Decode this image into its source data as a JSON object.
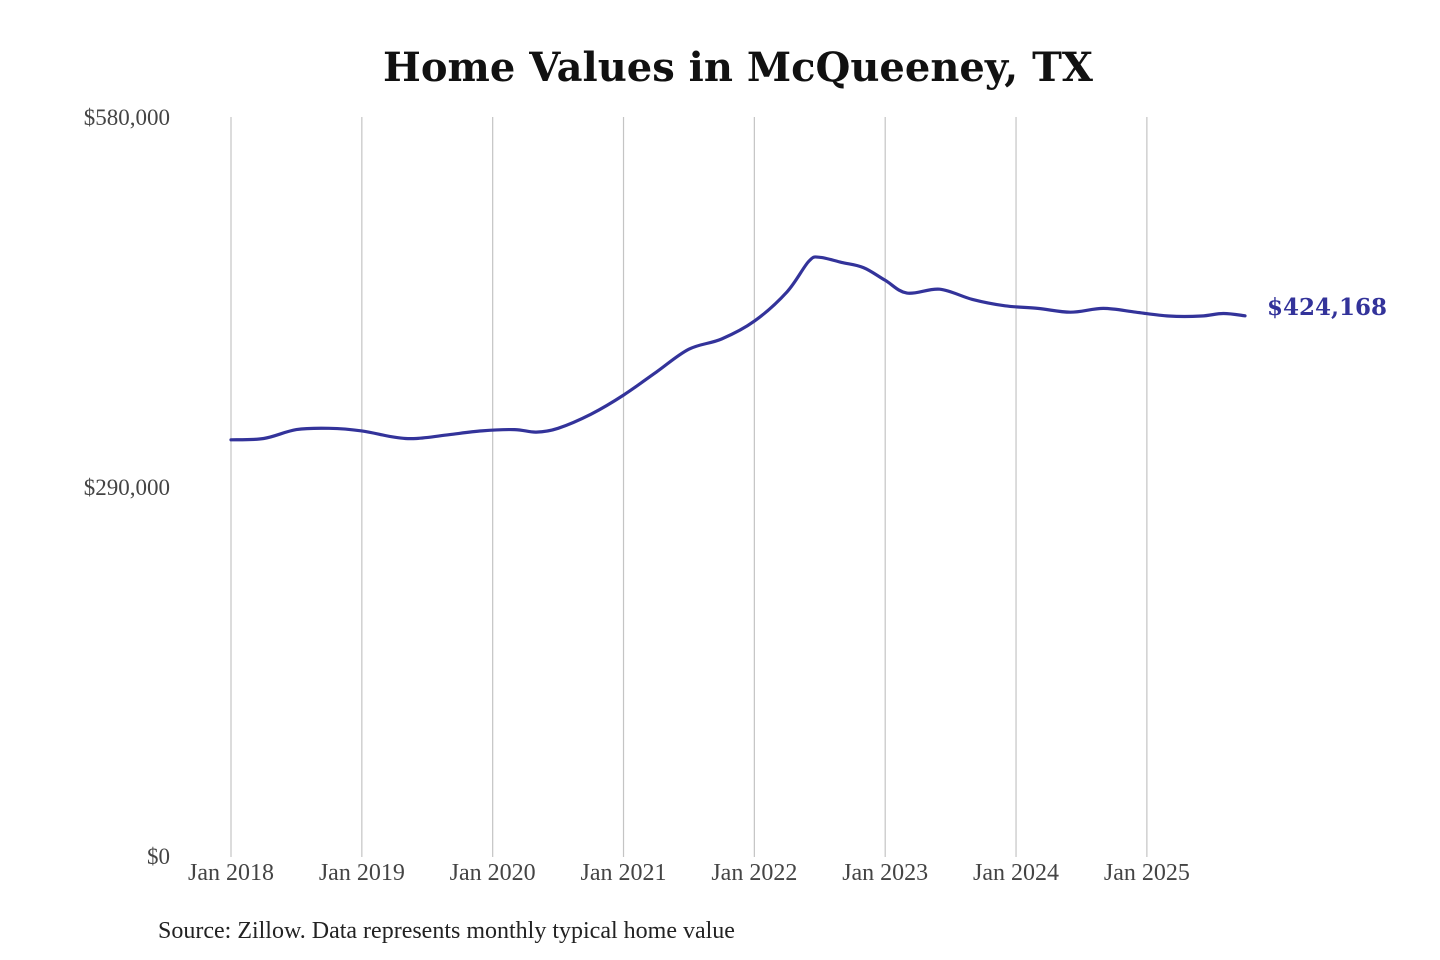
{
  "chart_data": {
    "type": "line",
    "title": "Home Values in McQueeney, TX",
    "xlabel": "",
    "ylabel": "",
    "ylim": [
      0,
      580000
    ],
    "xlim": [
      "2018-01",
      "2025-10"
    ],
    "grid": "vertical lines at each January",
    "y_ticks": [
      {
        "value": 580000,
        "label": "$580,000"
      },
      {
        "value": 290000,
        "label": "$290,000"
      },
      {
        "value": 0,
        "label": "$0"
      }
    ],
    "x_ticks": [
      {
        "value": "2018-01",
        "label": "Jan 2018"
      },
      {
        "value": "2019-01",
        "label": "Jan 2019"
      },
      {
        "value": "2020-01",
        "label": "Jan 2020"
      },
      {
        "value": "2021-01",
        "label": "Jan 2021"
      },
      {
        "value": "2022-01",
        "label": "Jan 2022"
      },
      {
        "value": "2023-01",
        "label": "Jan 2023"
      },
      {
        "value": "2024-01",
        "label": "Jan 2024"
      },
      {
        "value": "2025-01",
        "label": "Jan 2025"
      }
    ],
    "series": [
      {
        "color": "#33339a",
        "end_label": "$424,168",
        "points": [
          {
            "x": "2018-01",
            "y": 327000
          },
          {
            "x": "2018-04",
            "y": 328000
          },
          {
            "x": "2018-07",
            "y": 335000
          },
          {
            "x": "2018-10",
            "y": 336000
          },
          {
            "x": "2019-01",
            "y": 334000
          },
          {
            "x": "2019-04",
            "y": 329000
          },
          {
            "x": "2019-06",
            "y": 328000
          },
          {
            "x": "2019-09",
            "y": 331000
          },
          {
            "x": "2019-12",
            "y": 334000
          },
          {
            "x": "2020-03",
            "y": 335000
          },
          {
            "x": "2020-05",
            "y": 333000
          },
          {
            "x": "2020-07",
            "y": 336000
          },
          {
            "x": "2020-10",
            "y": 347000
          },
          {
            "x": "2021-01",
            "y": 362000
          },
          {
            "x": "2021-04",
            "y": 380000
          },
          {
            "x": "2021-07",
            "y": 398000
          },
          {
            "x": "2021-10",
            "y": 406000
          },
          {
            "x": "2022-01",
            "y": 420000
          },
          {
            "x": "2022-04",
            "y": 443000
          },
          {
            "x": "2022-06",
            "y": 467000
          },
          {
            "x": "2022-07",
            "y": 470000
          },
          {
            "x": "2022-09",
            "y": 466000
          },
          {
            "x": "2022-11",
            "y": 462000
          },
          {
            "x": "2023-01",
            "y": 452000
          },
          {
            "x": "2023-03",
            "y": 442000
          },
          {
            "x": "2023-06",
            "y": 445000
          },
          {
            "x": "2023-09",
            "y": 437000
          },
          {
            "x": "2023-12",
            "y": 432000
          },
          {
            "x": "2024-03",
            "y": 430000
          },
          {
            "x": "2024-06",
            "y": 427000
          },
          {
            "x": "2024-09",
            "y": 430000
          },
          {
            "x": "2024-12",
            "y": 427000
          },
          {
            "x": "2025-03",
            "y": 424000
          },
          {
            "x": "2025-06",
            "y": 424000
          },
          {
            "x": "2025-08",
            "y": 426000
          },
          {
            "x": "2025-10",
            "y": 424168
          }
        ]
      }
    ]
  },
  "source_note": "Source: Zillow. Data represents monthly typical home value"
}
